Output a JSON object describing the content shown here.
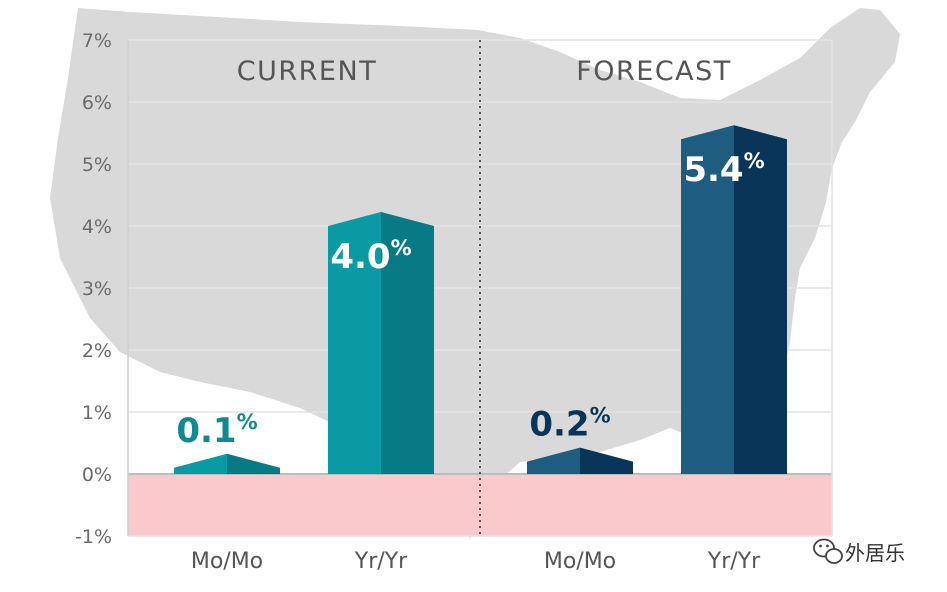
{
  "chart_data": {
    "type": "bar",
    "panels": [
      "CURRENT",
      "FORECAST"
    ],
    "categories": [
      "Mo/Mo",
      "Yr/Yr",
      "Mo/Mo",
      "Yr/Yr"
    ],
    "values": [
      0.1,
      4.0,
      0.2,
      5.4
    ],
    "value_labels": [
      "0.1",
      "4.0",
      "0.2",
      "5.4"
    ],
    "value_unit": "%",
    "yticks": [
      "7%",
      "6%",
      "5%",
      "4%",
      "3%",
      "2%",
      "1%",
      "0%",
      "-1%"
    ],
    "ylim": [
      -1,
      7
    ],
    "grid": true,
    "colors": {
      "current_front": "#0a9aa3",
      "current_side": "#087a86",
      "forecast_front": "#1f5d80",
      "forecast_side": "#083558",
      "current_label": "#0e8a93",
      "forecast_label": "#083558",
      "negative_band": "#f9c9cb",
      "map": "#d9d9d9"
    }
  },
  "watermark": {
    "text": "外居乐",
    "icon": "wechat-icon"
  }
}
